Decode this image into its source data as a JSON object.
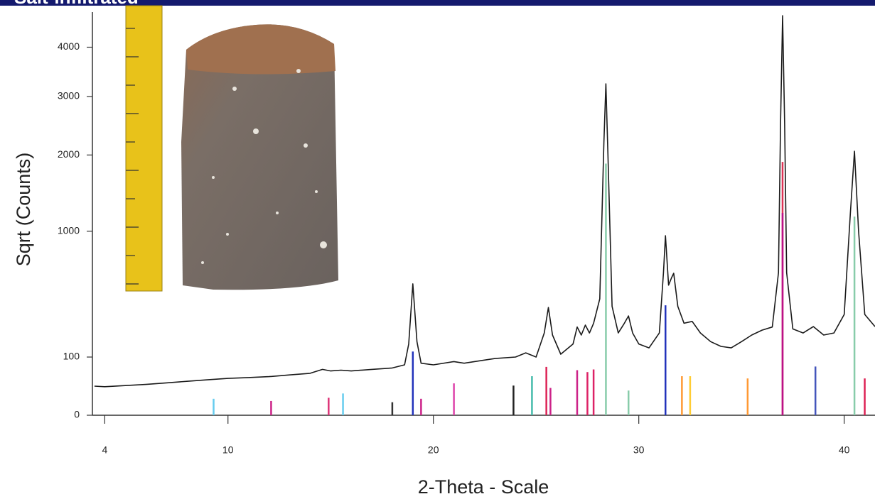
{
  "chart_data": {
    "type": "line",
    "title": "Salt-infiltrated",
    "xlabel": "2-Theta - Scale",
    "ylabel": "Sqrt (Counts)",
    "yscale": "sqrt",
    "color": "#1a1a1a",
    "xlim": [
      3.4,
      41.5
    ],
    "ylim": [
      0,
      4800
    ],
    "xticks": [
      4,
      10,
      20,
      30,
      40
    ],
    "yticks": [
      0,
      100,
      1000,
      2000,
      3000,
      4000
    ],
    "x": [
      3.5,
      4,
      5,
      6,
      7,
      8,
      9,
      10,
      11,
      12,
      13,
      14,
      14.6,
      15,
      15.5,
      16,
      17,
      18,
      18.6,
      18.8,
      19.0,
      19.2,
      19.4,
      20,
      21,
      21.5,
      22,
      23,
      24,
      24.5,
      25,
      25.4,
      25.6,
      25.8,
      26.2,
      26.8,
      27.0,
      27.2,
      27.4,
      27.6,
      27.8,
      28.1,
      28.3,
      28.4,
      28.5,
      28.7,
      29.0,
      29.3,
      29.5,
      29.7,
      30.0,
      30.5,
      31.0,
      31.2,
      31.3,
      31.45,
      31.6,
      31.7,
      31.9,
      32.2,
      32.6,
      33,
      33.5,
      34,
      34.5,
      35,
      35.5,
      36,
      36.5,
      36.8,
      36.9,
      37.0,
      37.1,
      37.2,
      37.5,
      38,
      38.5,
      39,
      39.5,
      40.0,
      40.3,
      40.5,
      40.7,
      41,
      41.5
    ],
    "values": [
      25,
      24,
      26,
      28,
      31,
      34,
      37,
      40,
      42,
      44,
      48,
      52,
      62,
      58,
      60,
      58,
      62,
      66,
      75,
      150,
      510,
      160,
      80,
      75,
      85,
      80,
      85,
      95,
      100,
      115,
      100,
      200,
      343,
      190,
      110,
      150,
      230,
      190,
      240,
      200,
      250,
      400,
      2200,
      3243,
      2000,
      350,
      200,
      250,
      291,
      200,
      150,
      134,
      200,
      600,
      952,
      500,
      560,
      595,
      350,
      250,
      260,
      200,
      160,
      140,
      134,
      160,
      190,
      214,
      230,
      600,
      2500,
      4714,
      2500,
      600,
      220,
      200,
      232,
      190,
      200,
      300,
      1200,
      2058,
      1000,
      300,
      232
    ],
    "reference_peaks": {
      "x": [
        9.3,
        12.1,
        14.9,
        15.6,
        18.0,
        19.0,
        19.4,
        21.0,
        23.9,
        24.8,
        25.5,
        25.7,
        27.0,
        27.5,
        27.8,
        28.4,
        29.5,
        31.3,
        32.1,
        32.5,
        35.3,
        37.0,
        37.0,
        38.6,
        40.5,
        41.0
      ],
      "values": [
        8,
        6,
        9,
        14,
        5,
        120,
        8,
        30,
        26,
        45,
        69,
        22,
        60,
        55,
        62,
        1870,
        18,
        357,
        45,
        45,
        40,
        1895,
        1208,
        70,
        1165,
        40
      ],
      "colors": [
        "#66ccee",
        "#cc2288",
        "#dd3377",
        "#66ccee",
        "#333333",
        "#2233bb",
        "#cc2288",
        "#dd44aa",
        "#222222",
        "#44bbaa",
        "#dd2255",
        "#cc2288",
        "#cc2288",
        "#dd2266",
        "#dd2266",
        "#88ccaa",
        "#88ccaa",
        "#2233bb",
        "#ff9933",
        "#ffcc33",
        "#ff9933",
        "#dd3355",
        "#bb1188",
        "#4455bb",
        "#88ccaa",
        "#dd2255"
      ]
    }
  }
}
